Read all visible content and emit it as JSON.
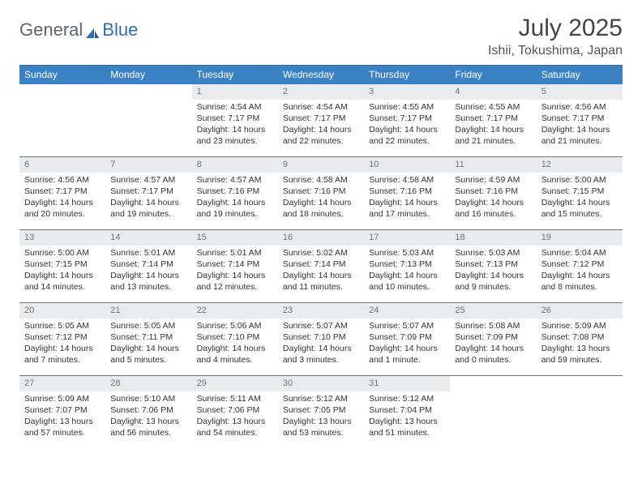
{
  "brand": {
    "general": "General",
    "blue": "Blue"
  },
  "title": "July 2025",
  "location": "Ishii, Tokushima, Japan",
  "colors": {
    "header_bg": "#3b82c4",
    "header_text": "#ffffff",
    "daynum_bg": "#e9ecef",
    "daynum_text": "#6a7580",
    "row_border": "#3b82c4",
    "body_text": "#333333",
    "logo_gray": "#5a6570",
    "logo_blue": "#2a6fb5"
  },
  "day_headers": [
    "Sunday",
    "Monday",
    "Tuesday",
    "Wednesday",
    "Thursday",
    "Friday",
    "Saturday"
  ],
  "weeks": [
    [
      null,
      null,
      {
        "n": "1",
        "sr": "Sunrise: 4:54 AM",
        "ss": "Sunset: 7:17 PM",
        "dl": "Daylight: 14 hours and 23 minutes."
      },
      {
        "n": "2",
        "sr": "Sunrise: 4:54 AM",
        "ss": "Sunset: 7:17 PM",
        "dl": "Daylight: 14 hours and 22 minutes."
      },
      {
        "n": "3",
        "sr": "Sunrise: 4:55 AM",
        "ss": "Sunset: 7:17 PM",
        "dl": "Daylight: 14 hours and 22 minutes."
      },
      {
        "n": "4",
        "sr": "Sunrise: 4:55 AM",
        "ss": "Sunset: 7:17 PM",
        "dl": "Daylight: 14 hours and 21 minutes."
      },
      {
        "n": "5",
        "sr": "Sunrise: 4:56 AM",
        "ss": "Sunset: 7:17 PM",
        "dl": "Daylight: 14 hours and 21 minutes."
      }
    ],
    [
      {
        "n": "6",
        "sr": "Sunrise: 4:56 AM",
        "ss": "Sunset: 7:17 PM",
        "dl": "Daylight: 14 hours and 20 minutes."
      },
      {
        "n": "7",
        "sr": "Sunrise: 4:57 AM",
        "ss": "Sunset: 7:17 PM",
        "dl": "Daylight: 14 hours and 19 minutes."
      },
      {
        "n": "8",
        "sr": "Sunrise: 4:57 AM",
        "ss": "Sunset: 7:16 PM",
        "dl": "Daylight: 14 hours and 19 minutes."
      },
      {
        "n": "9",
        "sr": "Sunrise: 4:58 AM",
        "ss": "Sunset: 7:16 PM",
        "dl": "Daylight: 14 hours and 18 minutes."
      },
      {
        "n": "10",
        "sr": "Sunrise: 4:58 AM",
        "ss": "Sunset: 7:16 PM",
        "dl": "Daylight: 14 hours and 17 minutes."
      },
      {
        "n": "11",
        "sr": "Sunrise: 4:59 AM",
        "ss": "Sunset: 7:16 PM",
        "dl": "Daylight: 14 hours and 16 minutes."
      },
      {
        "n": "12",
        "sr": "Sunrise: 5:00 AM",
        "ss": "Sunset: 7:15 PM",
        "dl": "Daylight: 14 hours and 15 minutes."
      }
    ],
    [
      {
        "n": "13",
        "sr": "Sunrise: 5:00 AM",
        "ss": "Sunset: 7:15 PM",
        "dl": "Daylight: 14 hours and 14 minutes."
      },
      {
        "n": "14",
        "sr": "Sunrise: 5:01 AM",
        "ss": "Sunset: 7:14 PM",
        "dl": "Daylight: 14 hours and 13 minutes."
      },
      {
        "n": "15",
        "sr": "Sunrise: 5:01 AM",
        "ss": "Sunset: 7:14 PM",
        "dl": "Daylight: 14 hours and 12 minutes."
      },
      {
        "n": "16",
        "sr": "Sunrise: 5:02 AM",
        "ss": "Sunset: 7:14 PM",
        "dl": "Daylight: 14 hours and 11 minutes."
      },
      {
        "n": "17",
        "sr": "Sunrise: 5:03 AM",
        "ss": "Sunset: 7:13 PM",
        "dl": "Daylight: 14 hours and 10 minutes."
      },
      {
        "n": "18",
        "sr": "Sunrise: 5:03 AM",
        "ss": "Sunset: 7:13 PM",
        "dl": "Daylight: 14 hours and 9 minutes."
      },
      {
        "n": "19",
        "sr": "Sunrise: 5:04 AM",
        "ss": "Sunset: 7:12 PM",
        "dl": "Daylight: 14 hours and 8 minutes."
      }
    ],
    [
      {
        "n": "20",
        "sr": "Sunrise: 5:05 AM",
        "ss": "Sunset: 7:12 PM",
        "dl": "Daylight: 14 hours and 7 minutes."
      },
      {
        "n": "21",
        "sr": "Sunrise: 5:05 AM",
        "ss": "Sunset: 7:11 PM",
        "dl": "Daylight: 14 hours and 5 minutes."
      },
      {
        "n": "22",
        "sr": "Sunrise: 5:06 AM",
        "ss": "Sunset: 7:10 PM",
        "dl": "Daylight: 14 hours and 4 minutes."
      },
      {
        "n": "23",
        "sr": "Sunrise: 5:07 AM",
        "ss": "Sunset: 7:10 PM",
        "dl": "Daylight: 14 hours and 3 minutes."
      },
      {
        "n": "24",
        "sr": "Sunrise: 5:07 AM",
        "ss": "Sunset: 7:09 PM",
        "dl": "Daylight: 14 hours and 1 minute."
      },
      {
        "n": "25",
        "sr": "Sunrise: 5:08 AM",
        "ss": "Sunset: 7:09 PM",
        "dl": "Daylight: 14 hours and 0 minutes."
      },
      {
        "n": "26",
        "sr": "Sunrise: 5:09 AM",
        "ss": "Sunset: 7:08 PM",
        "dl": "Daylight: 13 hours and 59 minutes."
      }
    ],
    [
      {
        "n": "27",
        "sr": "Sunrise: 5:09 AM",
        "ss": "Sunset: 7:07 PM",
        "dl": "Daylight: 13 hours and 57 minutes."
      },
      {
        "n": "28",
        "sr": "Sunrise: 5:10 AM",
        "ss": "Sunset: 7:06 PM",
        "dl": "Daylight: 13 hours and 56 minutes."
      },
      {
        "n": "29",
        "sr": "Sunrise: 5:11 AM",
        "ss": "Sunset: 7:06 PM",
        "dl": "Daylight: 13 hours and 54 minutes."
      },
      {
        "n": "30",
        "sr": "Sunrise: 5:12 AM",
        "ss": "Sunset: 7:05 PM",
        "dl": "Daylight: 13 hours and 53 minutes."
      },
      {
        "n": "31",
        "sr": "Sunrise: 5:12 AM",
        "ss": "Sunset: 7:04 PM",
        "dl": "Daylight: 13 hours and 51 minutes."
      },
      null,
      null
    ]
  ]
}
